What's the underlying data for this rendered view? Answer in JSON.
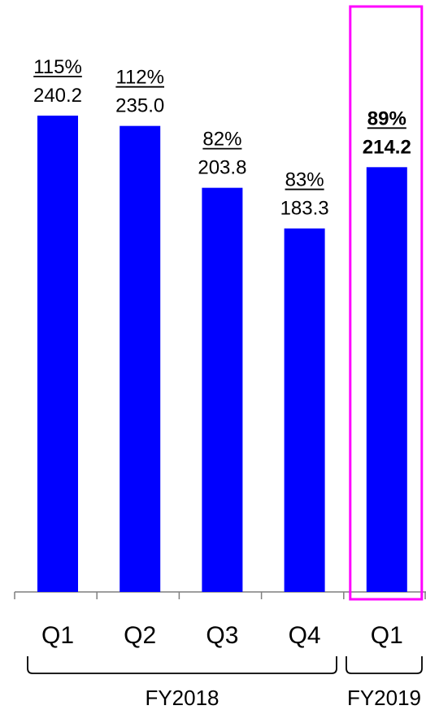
{
  "chart_data": {
    "type": "bar",
    "categories": [
      "Q1",
      "Q2",
      "Q3",
      "Q4",
      "Q1"
    ],
    "values": [
      240.2,
      235.0,
      203.8,
      183.3,
      214.2
    ],
    "value_labels": [
      "240.2",
      "235.0",
      "203.8",
      "183.3",
      "214.2"
    ],
    "percent_labels": [
      "115%",
      "112%",
      "82%",
      "83%",
      "89%"
    ],
    "groups": [
      {
        "label": "FY2018",
        "categories": [
          0,
          1,
          2,
          3
        ]
      },
      {
        "label": "FY2019",
        "categories": [
          4
        ]
      }
    ],
    "highlight_index": 4,
    "ylim": [
      0,
      260
    ],
    "bar_color": "#0000ff",
    "highlight_color": "#ff00ff",
    "grid": false,
    "legend": "none",
    "title": "",
    "xlabel": "",
    "ylabel": ""
  }
}
